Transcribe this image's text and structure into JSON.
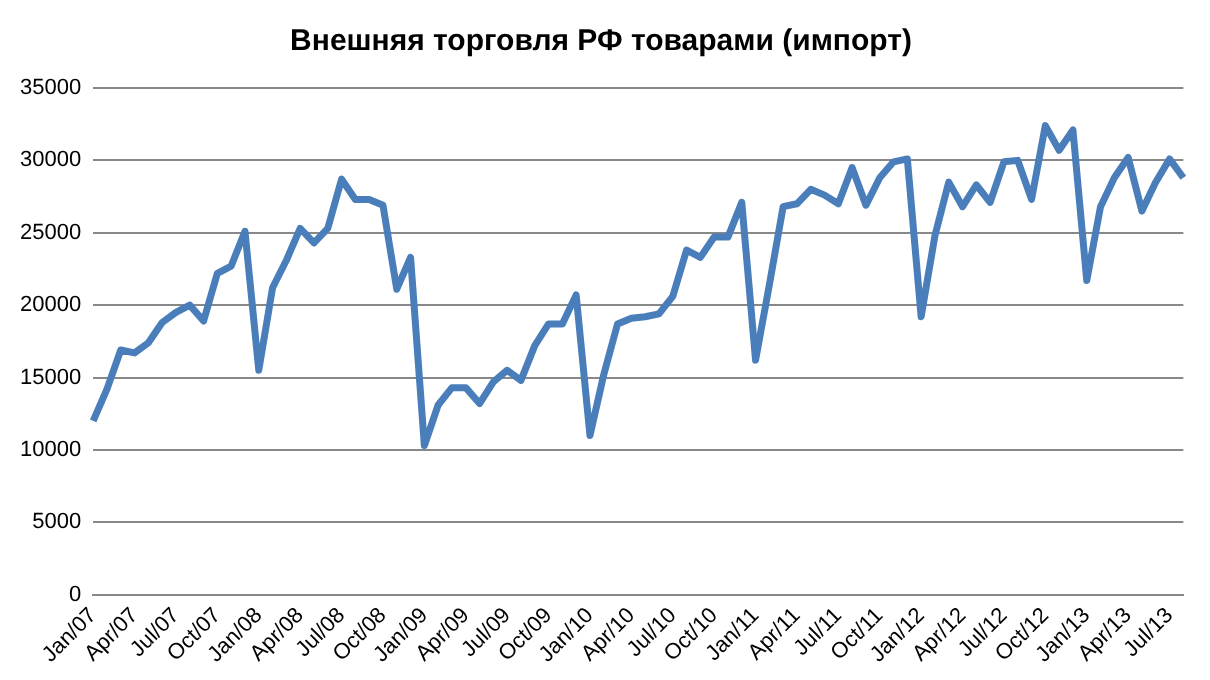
{
  "chart_data": {
    "type": "line",
    "title": "Внешняя торговля РФ товарами (импорт)",
    "categories": [
      "Jan/07",
      null,
      null,
      "Apr/07",
      null,
      null,
      "Jul/07",
      null,
      null,
      "Oct/07",
      null,
      null,
      "Jan/08",
      null,
      null,
      "Apr/08",
      null,
      null,
      "Jul/08",
      null,
      null,
      "Oct/08",
      null,
      null,
      "Jan/09",
      null,
      null,
      "Apr/09",
      null,
      null,
      "Jul/09",
      null,
      null,
      "Oct/09",
      null,
      null,
      "Jan/10",
      null,
      null,
      "Apr/10",
      null,
      null,
      "Jul/10",
      null,
      null,
      "Oct/10",
      null,
      null,
      "Jan/11",
      null,
      null,
      "Apr/11",
      null,
      null,
      "Jul/11",
      null,
      null,
      "Oct/11",
      null,
      null,
      "Jan/12",
      null,
      null,
      "Apr/12",
      null,
      null,
      "Jul/12",
      null,
      null,
      "Oct/12",
      null,
      null,
      "Jan/13",
      null,
      null,
      "Apr/13",
      null,
      null,
      "Jul/13",
      null
    ],
    "series": [
      {
        "color": "#4a7ebb",
        "values": [
          12000,
          14200,
          16900,
          16700,
          17400,
          18800,
          19500,
          20000,
          18900,
          22200,
          22700,
          25100,
          15500,
          21200,
          23100,
          25300,
          24300,
          25300,
          28700,
          27300,
          27300,
          26900,
          21100,
          23300,
          10300,
          13100,
          14300,
          14300,
          13200,
          14700,
          15500,
          14800,
          17200,
          18700,
          18700,
          20700,
          11000,
          15200,
          18700,
          19100,
          19200,
          19400,
          20600,
          23800,
          23300,
          24700,
          24700,
          27100,
          16200,
          21400,
          26800,
          27000,
          28000,
          27600,
          27000,
          29500,
          26900,
          28800,
          29900,
          30100,
          19200,
          24800,
          28500,
          26800,
          28300,
          27100,
          29900,
          30000,
          27300,
          32400,
          30700,
          32100,
          21700,
          26800,
          28800,
          30200,
          26500,
          28500,
          30100,
          28800
        ]
      }
    ],
    "ylim": [
      0,
      35000
    ],
    "yticks": [
      0,
      5000,
      10000,
      15000,
      20000,
      25000,
      30000,
      35000
    ],
    "grid": "y",
    "legend": false,
    "marker": "none",
    "line_style": "solid"
  }
}
